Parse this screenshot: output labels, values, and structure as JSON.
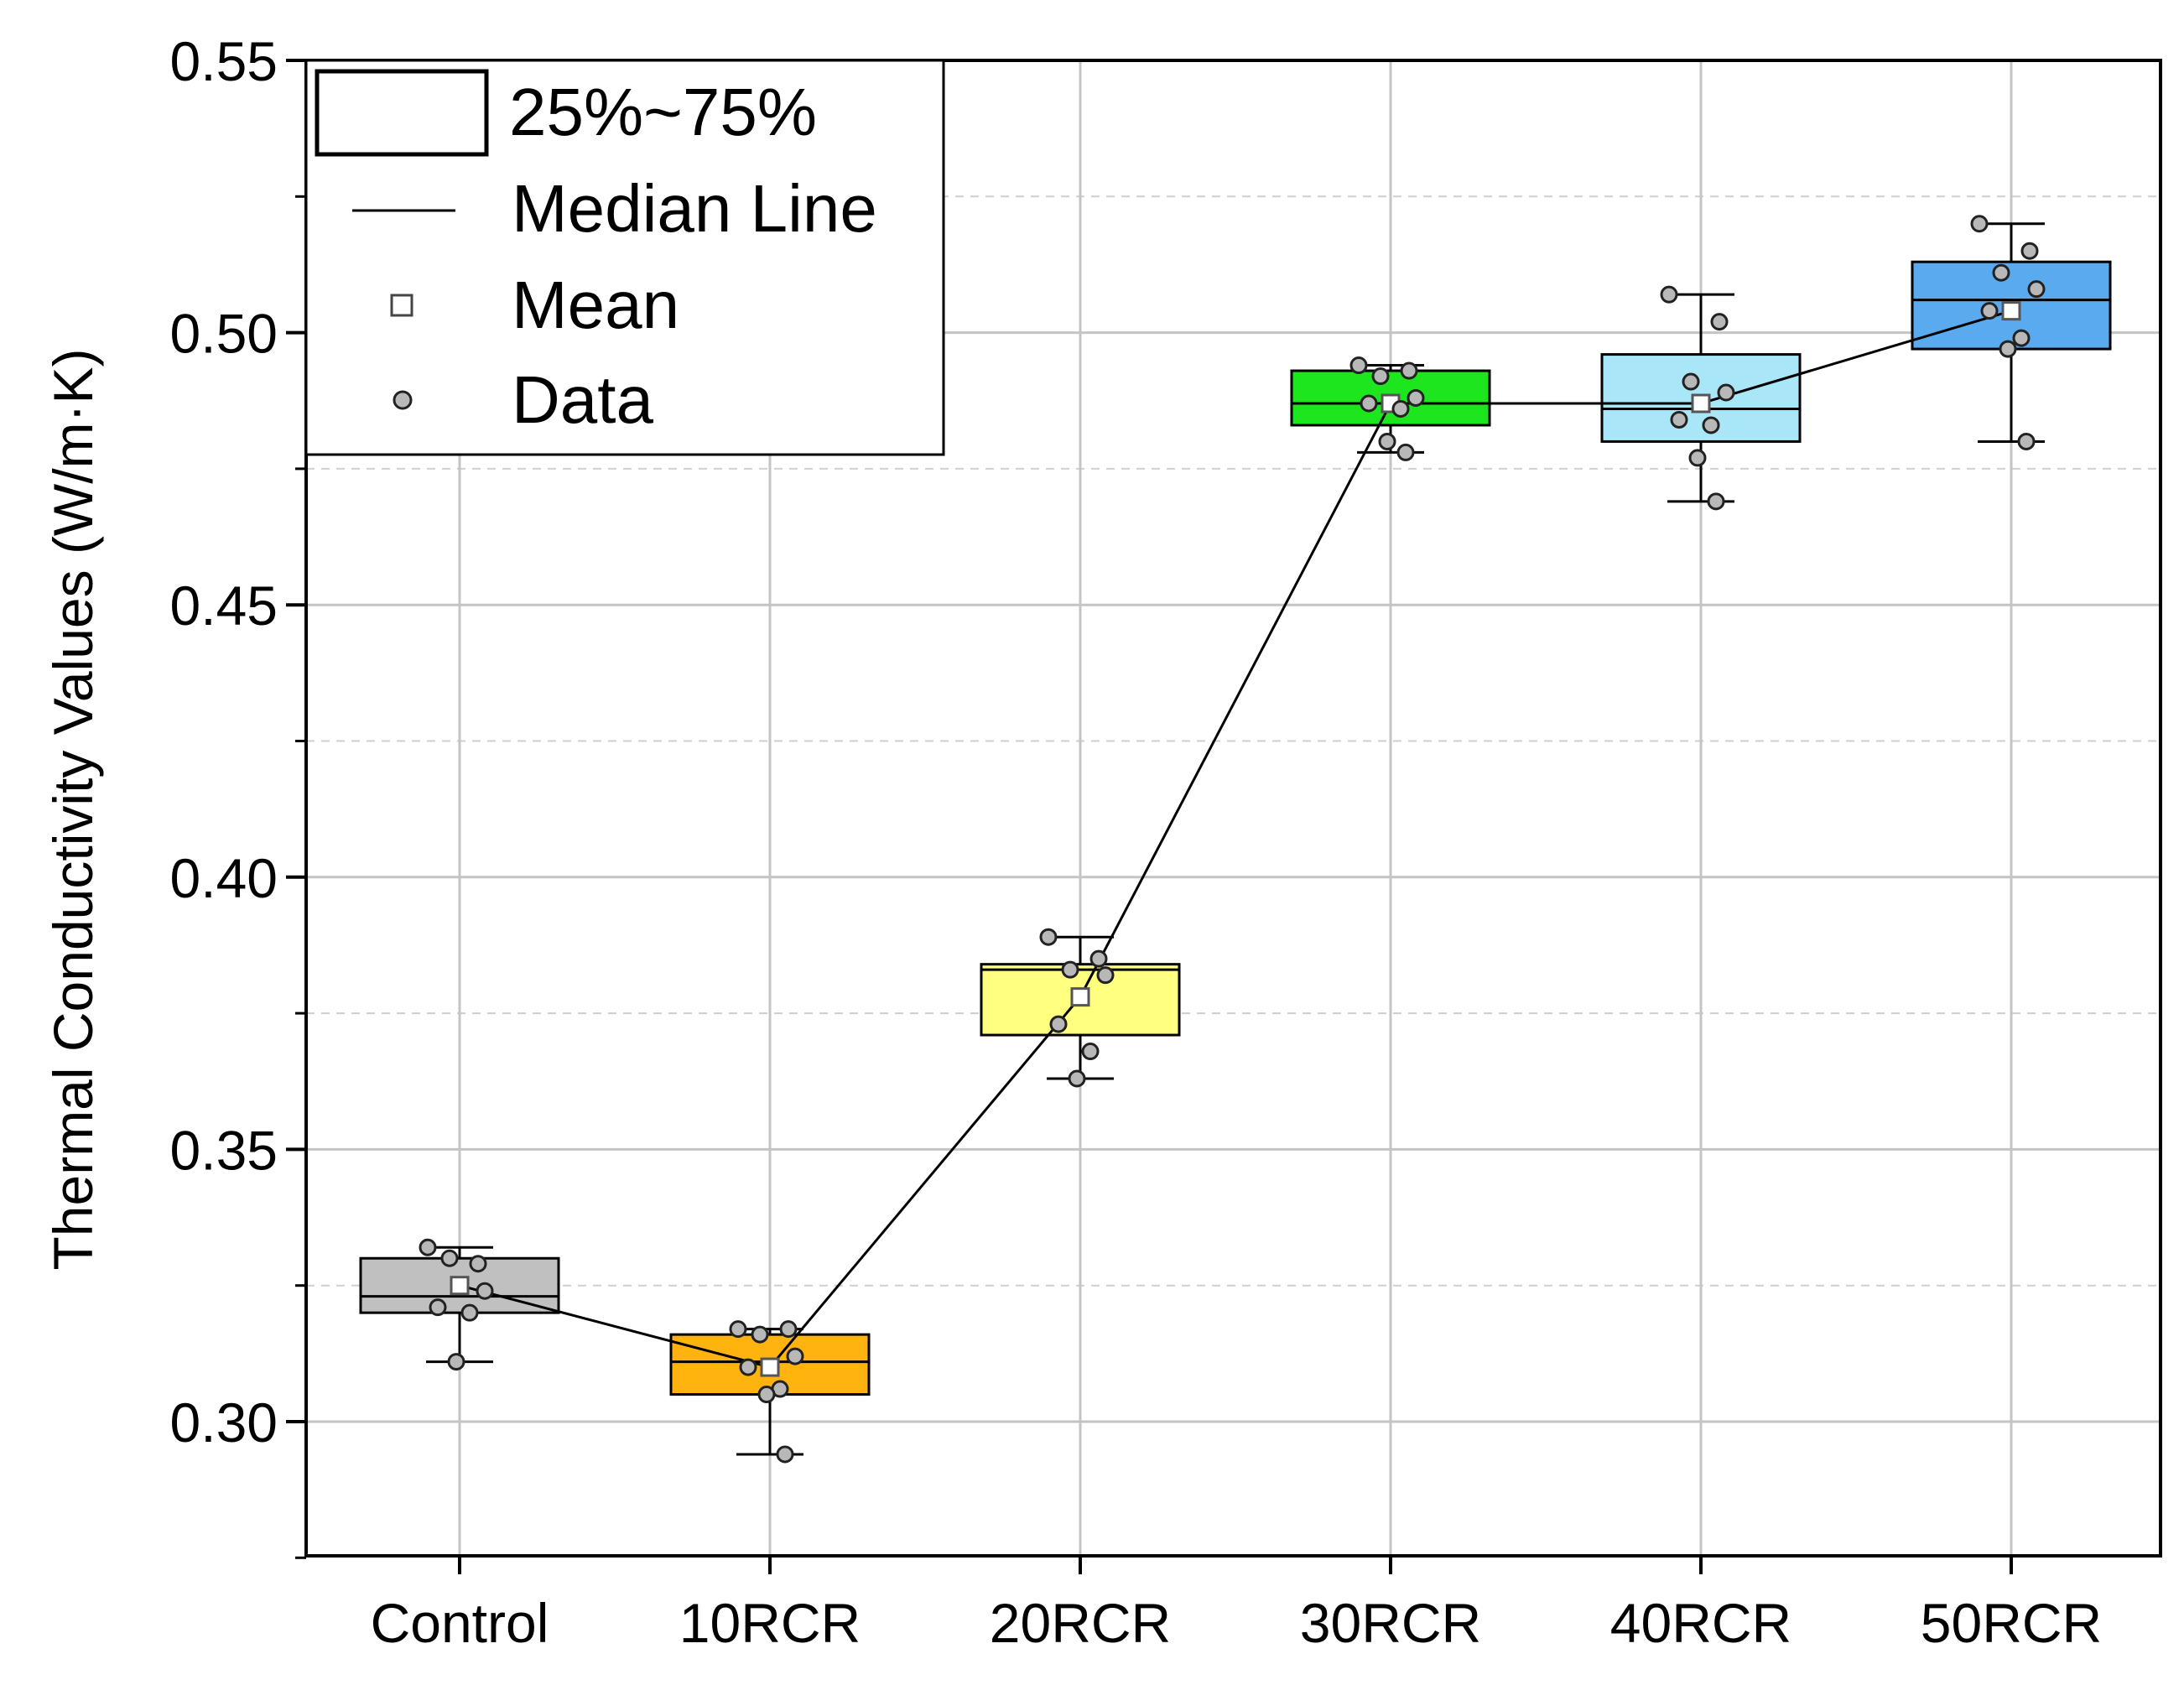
{
  "chart_data": {
    "type": "box",
    "title": "",
    "xlabel": "",
    "ylabel": "Thermal Conductivity Values (W/m·K)",
    "ylim": [
      0.275,
      0.55
    ],
    "yticks": [
      "0.30",
      "0.35",
      "0.40",
      "0.45",
      "0.50",
      "0.55"
    ],
    "ytick_values": [
      0.3,
      0.35,
      0.4,
      0.45,
      0.5,
      0.55
    ],
    "minor_gridlines": [
      0.325,
      0.375,
      0.425,
      0.475,
      0.525
    ],
    "grid": true,
    "legend_position": "top-left",
    "legend": {
      "box": "25%~75%",
      "median": "Median Line",
      "mean": "Mean",
      "data": "Data"
    },
    "categories": [
      "Control",
      "10RCR",
      "20RCR",
      "30RCR",
      "40RCR",
      "50RCR"
    ],
    "series": [
      {
        "name": "Control",
        "color": "#c0c0c0",
        "whisker_low": 0.311,
        "q1": 0.32,
        "median": 0.323,
        "q3": 0.33,
        "whisker_high": 0.332,
        "mean": 0.325,
        "points": [
          0.332,
          0.329,
          0.33,
          0.324,
          0.321,
          0.32,
          0.311
        ]
      },
      {
        "name": "10RCR",
        "color": "#ffb30f",
        "whisker_low": 0.294,
        "q1": 0.305,
        "median": 0.311,
        "q3": 0.316,
        "whisker_high": 0.317,
        "mean": 0.31,
        "points": [
          0.317,
          0.317,
          0.316,
          0.312,
          0.31,
          0.306,
          0.305,
          0.294
        ]
      },
      {
        "name": "20RCR",
        "color": "#ffff80",
        "whisker_low": 0.363,
        "q1": 0.371,
        "median": 0.383,
        "q3": 0.384,
        "whisker_high": 0.389,
        "mean": 0.378,
        "points": [
          0.389,
          0.385,
          0.383,
          0.382,
          0.373,
          0.368,
          0.363
        ]
      },
      {
        "name": "30RCR",
        "color": "#1ee61e",
        "whisker_low": 0.478,
        "q1": 0.483,
        "median": 0.487,
        "q3": 0.493,
        "whisker_high": 0.494,
        "mean": 0.487,
        "points": [
          0.494,
          0.493,
          0.492,
          0.488,
          0.487,
          0.486,
          0.48,
          0.478
        ]
      },
      {
        "name": "40RCR",
        "color": "#a8e6f8",
        "whisker_low": 0.469,
        "q1": 0.48,
        "median": 0.486,
        "q3": 0.496,
        "whisker_high": 0.507,
        "mean": 0.487,
        "points": [
          0.507,
          0.502,
          0.491,
          0.489,
          0.484,
          0.483,
          0.477,
          0.469
        ]
      },
      {
        "name": "50RCR",
        "color": "#5aaaf0",
        "whisker_low": 0.48,
        "q1": 0.497,
        "median": 0.506,
        "q3": 0.513,
        "whisker_high": 0.52,
        "mean": 0.504,
        "points": [
          0.52,
          0.515,
          0.511,
          0.508,
          0.504,
          0.499,
          0.497,
          0.48
        ]
      }
    ]
  }
}
